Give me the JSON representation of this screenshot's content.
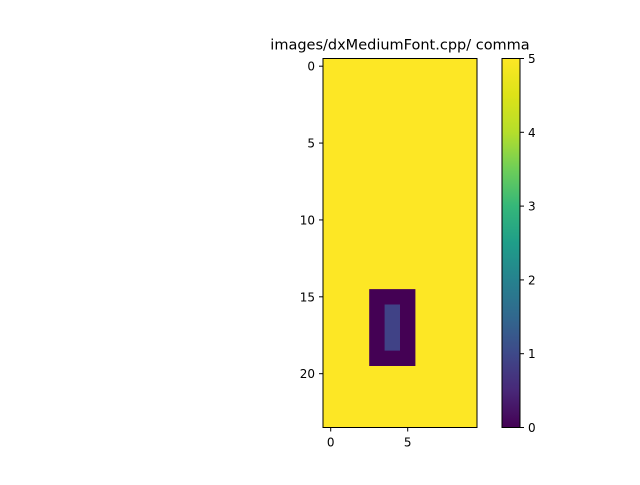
{
  "chart_data": {
    "type": "heatmap",
    "title": "images/dxMediumFont.cpp/ comma",
    "rows": 24,
    "cols": 10,
    "background_value": 5,
    "outer_rect": {
      "row_start": 15,
      "row_end": 19,
      "col_start": 3,
      "col_end": 5,
      "value": 0
    },
    "inner_rect": {
      "row_start": 16,
      "row_end": 18,
      "col_start": 4,
      "col_end": 4,
      "value": 0.9
    },
    "x_ticks": [
      0,
      5
    ],
    "y_ticks": [
      0,
      5,
      10,
      15,
      20
    ],
    "colorbar": {
      "min": 0,
      "max": 5,
      "ticks": [
        0,
        1,
        2,
        3,
        4,
        5
      ],
      "colormap": "viridis"
    },
    "grid": false
  },
  "labels": {
    "title": "images/dxMediumFont.cpp/ comma"
  }
}
